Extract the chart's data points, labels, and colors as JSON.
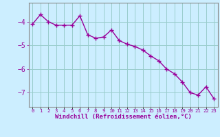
{
  "x": [
    0,
    1,
    2,
    3,
    4,
    5,
    6,
    7,
    8,
    9,
    10,
    11,
    12,
    13,
    14,
    15,
    16,
    17,
    18,
    19,
    20,
    21,
    22,
    23
  ],
  "y": [
    -4.1,
    -3.7,
    -4.0,
    -4.15,
    -4.15,
    -4.15,
    -3.75,
    -4.55,
    -4.7,
    -4.65,
    -4.35,
    -4.8,
    -4.95,
    -5.05,
    -5.2,
    -5.45,
    -5.65,
    -6.0,
    -6.2,
    -6.55,
    -7.0,
    -7.1,
    -6.75,
    -7.25
  ],
  "line_color": "#990099",
  "marker": "+",
  "marker_size": 4,
  "linewidth": 1.0,
  "background_color": "#cceeff",
  "grid_color": "#99cccc",
  "tick_label_color": "#990099",
  "xlabel": "Windchill (Refroidissement éolien,°C)",
  "xlabel_color": "#990099",
  "xlabel_fontsize": 6.5,
  "ylabel_ticks": [
    -4,
    -5,
    -6,
    -7
  ],
  "ytick_fontsize": 7,
  "xtick_fontsize": 5.2,
  "ylim": [
    -7.6,
    -3.2
  ],
  "xlim": [
    -0.5,
    23.5
  ],
  "spine_color": "#888888"
}
